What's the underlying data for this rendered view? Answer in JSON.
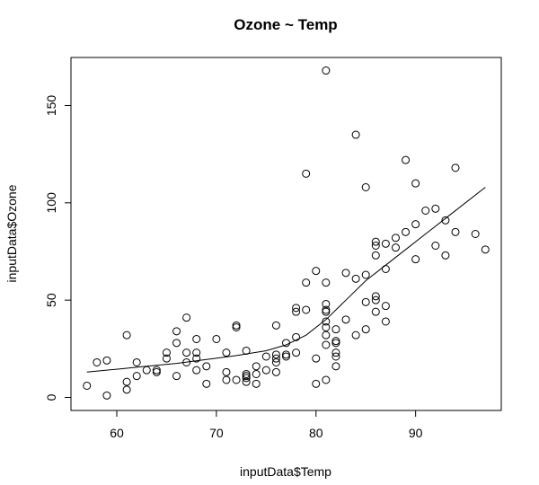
{
  "chart_data": {
    "type": "scatter",
    "title": "Ozone ~ Temp",
    "xlabel": "inputData$Temp",
    "ylabel": "inputData$Ozone",
    "xlim": [
      55.4,
      98.6
    ],
    "ylim": [
      -6.7,
      174.7
    ],
    "xticks": [
      60,
      70,
      80,
      90
    ],
    "yticks": [
      0,
      50,
      100,
      150
    ],
    "grid": false,
    "points": [
      [
        57,
        6
      ],
      [
        58,
        18
      ],
      [
        59,
        19
      ],
      [
        59,
        1
      ],
      [
        61,
        32
      ],
      [
        61,
        8
      ],
      [
        61,
        4
      ],
      [
        62,
        18
      ],
      [
        62,
        11
      ],
      [
        63,
        14
      ],
      [
        64,
        14
      ],
      [
        64,
        13
      ],
      [
        65,
        23
      ],
      [
        65,
        20
      ],
      [
        66,
        34
      ],
      [
        66,
        28
      ],
      [
        66,
        11
      ],
      [
        67,
        41
      ],
      [
        67,
        23
      ],
      [
        67,
        18
      ],
      [
        68,
        30
      ],
      [
        68,
        23
      ],
      [
        68,
        20
      ],
      [
        68,
        14
      ],
      [
        69,
        16
      ],
      [
        69,
        7
      ],
      [
        70,
        30
      ],
      [
        71,
        23
      ],
      [
        71,
        13
      ],
      [
        71,
        9
      ],
      [
        72,
        37
      ],
      [
        72,
        36
      ],
      [
        72,
        9
      ],
      [
        73,
        24
      ],
      [
        73,
        12
      ],
      [
        73,
        11
      ],
      [
        73,
        10
      ],
      [
        73,
        8
      ],
      [
        74,
        16
      ],
      [
        74,
        12
      ],
      [
        74,
        7
      ],
      [
        75,
        21
      ],
      [
        75,
        14
      ],
      [
        76,
        37
      ],
      [
        76,
        22
      ],
      [
        76,
        20
      ],
      [
        76,
        18
      ],
      [
        76,
        13
      ],
      [
        77,
        28
      ],
      [
        77,
        22
      ],
      [
        77,
        21
      ],
      [
        78,
        46
      ],
      [
        78,
        44
      ],
      [
        78,
        31
      ],
      [
        78,
        23
      ],
      [
        79,
        115
      ],
      [
        79,
        59
      ],
      [
        79,
        45
      ],
      [
        80,
        65
      ],
      [
        80,
        20
      ],
      [
        80,
        7
      ],
      [
        81,
        168
      ],
      [
        81,
        59
      ],
      [
        81,
        48
      ],
      [
        81,
        45
      ],
      [
        81,
        44
      ],
      [
        81,
        39
      ],
      [
        81,
        36
      ],
      [
        81,
        32
      ],
      [
        81,
        27
      ],
      [
        81,
        9
      ],
      [
        82,
        35
      ],
      [
        82,
        29
      ],
      [
        82,
        28
      ],
      [
        82,
        23
      ],
      [
        82,
        21
      ],
      [
        82,
        16
      ],
      [
        83,
        64
      ],
      [
        83,
        40
      ],
      [
        84,
        135
      ],
      [
        84,
        61
      ],
      [
        84,
        32
      ],
      [
        85,
        108
      ],
      [
        85,
        63
      ],
      [
        85,
        49
      ],
      [
        85,
        35
      ],
      [
        86,
        80
      ],
      [
        86,
        78
      ],
      [
        86,
        73
      ],
      [
        86,
        52
      ],
      [
        86,
        50
      ],
      [
        86,
        44
      ],
      [
        87,
        79
      ],
      [
        87,
        66
      ],
      [
        87,
        47
      ],
      [
        87,
        39
      ],
      [
        88,
        82
      ],
      [
        88,
        77
      ],
      [
        89,
        122
      ],
      [
        89,
        85
      ],
      [
        90,
        110
      ],
      [
        90,
        89
      ],
      [
        90,
        71
      ],
      [
        91,
        96
      ],
      [
        92,
        97
      ],
      [
        92,
        78
      ],
      [
        93,
        91
      ],
      [
        93,
        73
      ],
      [
        94,
        118
      ],
      [
        94,
        85
      ],
      [
        96,
        84
      ],
      [
        97,
        76
      ]
    ],
    "smooth_line": [
      [
        57,
        13
      ],
      [
        60,
        14.5
      ],
      [
        63,
        16
      ],
      [
        66,
        17.5
      ],
      [
        69,
        19.5
      ],
      [
        72,
        21.5
      ],
      [
        75,
        24
      ],
      [
        77,
        27
      ],
      [
        79,
        32
      ],
      [
        81,
        40
      ],
      [
        83,
        50
      ],
      [
        85,
        60
      ],
      [
        87,
        68
      ],
      [
        89,
        76
      ],
      [
        91,
        84
      ],
      [
        93,
        92
      ],
      [
        95,
        100
      ],
      [
        97,
        108
      ]
    ]
  }
}
